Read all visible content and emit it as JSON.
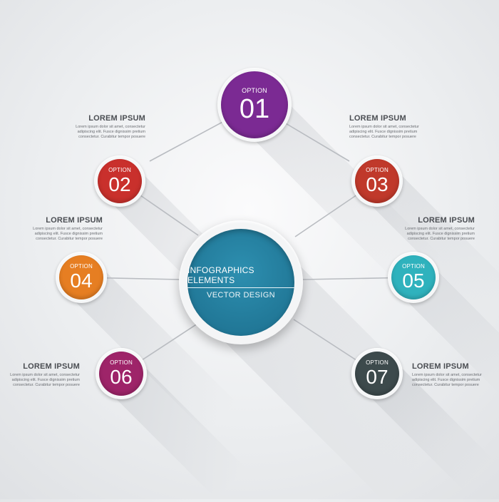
{
  "center": {
    "title": "INFOGRAPHICS ELEMENTS",
    "subtitle": "VECTOR DESIGN",
    "color": "#1f7595"
  },
  "options": [
    {
      "word": "OPTION",
      "number": "01",
      "color": "#7b2a93",
      "heading": "",
      "body": ""
    },
    {
      "word": "OPTION",
      "number": "02",
      "color": "#c9302c",
      "heading": "LOREM IPSUM",
      "body": "Lorem ipsum dolor sit amet, consectetur adipiscing elit. Fusce dignissim pretium consectetur. Curabitur tempor posuere"
    },
    {
      "word": "OPTION",
      "number": "03",
      "color": "#c0392b",
      "heading": "LOREM IPSUM",
      "body": "Lorem ipsum dolor sit amet, consectetur adipiscing elit. Fusce dignissim pretium consectetur. Curabitur tempor posuere"
    },
    {
      "word": "OPTION",
      "number": "04",
      "color": "#e67e22",
      "heading": "LOREM IPSUM",
      "body": "Lorem ipsum dolor sit amet, consectetur adipiscing elit. Fusce dignissim pretium consectetur. Curabitur tempor posuere"
    },
    {
      "word": "OPTION",
      "number": "05",
      "color": "#2fb2bd",
      "heading": "LOREM IPSUM",
      "body": "Lorem ipsum dolor sit amet, consectetur adipiscing elit. Fusce dignissim pretium consectetur. Curabitur tempor posuere"
    },
    {
      "word": "OPTION",
      "number": "06",
      "color": "#9e2469",
      "heading": "LOREM IPSUM",
      "body": "Lorem ipsum dolor sit amet, consectetur adipiscing elit. Fusce dignissim pretium consectetur. Curabitur tempor posuere"
    },
    {
      "word": "OPTION",
      "number": "07",
      "color": "#3d4a4c",
      "heading": "LOREM IPSUM",
      "body": "Lorem ipsum dolor sit amet, consectetur adipiscing elit. Fusce dignissim pretium consectetur. Curabitur tempor posuere"
    }
  ],
  "top_labels": [
    {
      "heading": "LOREM IPSUM",
      "body": "Lorem ipsum dolor sit amet, consectetur adipiscing elit. Fusce dignissim pretium consectetur. Curabitur tempor posuere"
    },
    {
      "heading": "LOREM IPSUM",
      "body": "Lorem ipsum dolor sit amet, consectetur adipiscing elit. Fusce dignissim pretium consectetur. Curabitur tempor posuere"
    }
  ]
}
